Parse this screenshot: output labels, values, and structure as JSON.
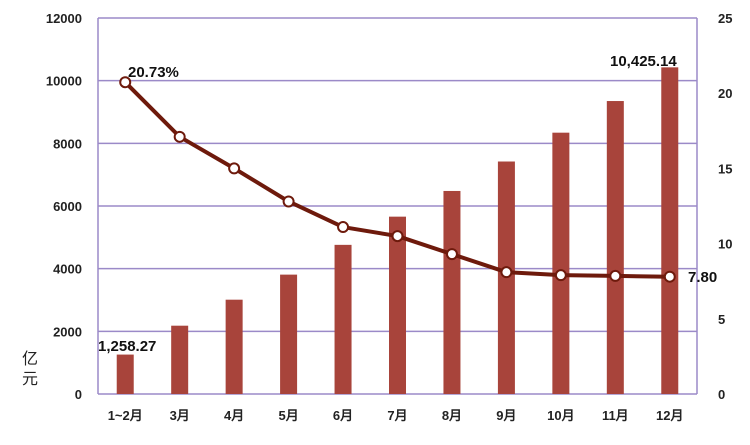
{
  "chart_data": {
    "type": "bar+line",
    "title": "",
    "categories": [
      "1~2月",
      "3月",
      "4月",
      "5月",
      "6月",
      "7月",
      "8月",
      "9月",
      "10月",
      "11月",
      "12月"
    ],
    "series": [
      {
        "type": "bar",
        "axis": "left",
        "color": "#a8443b",
        "values": [
          1258.27,
          2180,
          3010,
          3810,
          4760,
          5660,
          6480,
          7420,
          8340,
          9350,
          10425.14
        ]
      },
      {
        "type": "line",
        "axis": "right",
        "color": "#6e1a0c",
        "values": [
          20.73,
          17.1,
          15.0,
          12.8,
          11.1,
          10.5,
          9.3,
          8.1,
          7.9,
          7.85,
          7.8
        ]
      }
    ],
    "ylabel": "亿元",
    "ylim_left": [
      0,
      12000
    ],
    "yticks_left": [
      "0",
      "2000",
      "4000",
      "6000",
      "8000",
      "10000",
      "12000"
    ],
    "ylim_right": [
      0,
      25
    ],
    "yticks_right": [
      "0",
      "5",
      "10",
      "15",
      "20",
      "25"
    ],
    "grid": true,
    "grid_color": "#9b8ac8",
    "data_labels": {
      "bar_first": "1,258.27",
      "bar_last": "10,425.14",
      "line_first": "20.73%",
      "line_last": "7.80"
    }
  }
}
